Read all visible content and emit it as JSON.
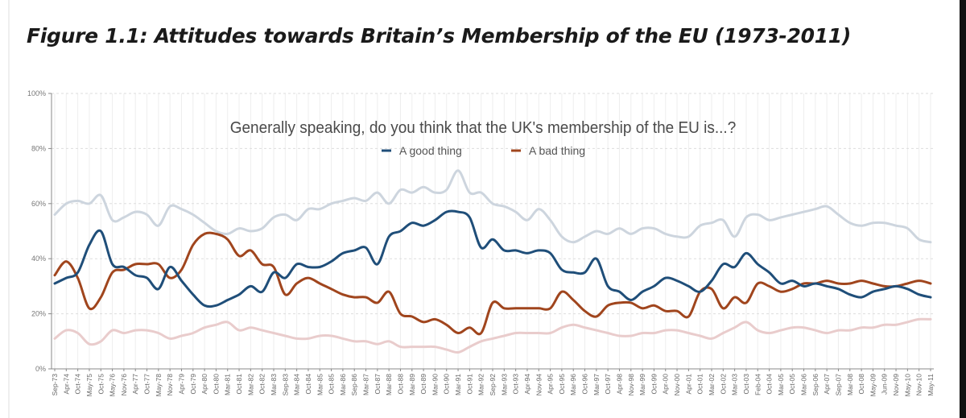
{
  "figure": {
    "title": "Figure 1.1: Attitudes towards Britain’s Membership of the EU (1973-2011)"
  },
  "chart_data": {
    "type": "line",
    "title": "Generally speaking, do you think that the UK's membership of the EU is...?",
    "xlabel": "",
    "ylabel": "",
    "ylim": [
      0,
      100
    ],
    "yticks": [
      "0%",
      "20%",
      "40%",
      "60%",
      "80%",
      "100%"
    ],
    "grid": true,
    "legend_position": "top-center",
    "colors": {
      "good": "#1f4e79",
      "bad": "#a0451d",
      "upper_band": "#cdd5de",
      "lower_band": "#e9cccc"
    },
    "categories": [
      "Sep-73",
      "Apr-74",
      "Oct-74",
      "May-75",
      "Oct-75",
      "May-76",
      "Nov-76",
      "Apr-77",
      "Oct-77",
      "May-78",
      "Nov-78",
      "Apr-79",
      "Oct-79",
      "Apr-80",
      "Oct-80",
      "Mar-81",
      "Oct-81",
      "Mar-82",
      "Oct-82",
      "Mar-83",
      "Sep-83",
      "Mar-84",
      "Oct-84",
      "Mar-85",
      "Oct-85",
      "Mar-86",
      "Sep-86",
      "Mar-87",
      "Oct-87",
      "Mar-88",
      "Oct-88",
      "Mar-89",
      "Oct-89",
      "Mar-90",
      "Oct-90",
      "Mar-91",
      "Oct-91",
      "Mar-92",
      "Sep-92",
      "Mar-93",
      "Oct-93",
      "Apr-94",
      "Nov-94",
      "Apr-95",
      "Oct-95",
      "Mar-96",
      "Oct-96",
      "Mar-97",
      "Oct-97",
      "Apr-98",
      "Nov-98",
      "Mar-99",
      "Oct-99",
      "Apr-00",
      "Nov-00",
      "Apr-01",
      "Oct-01",
      "Mar-02",
      "Oct-02",
      "Mar-03",
      "Oct-03",
      "Feb-04",
      "Oct-04",
      "Mar-05",
      "Oct-05",
      "Mar-06",
      "Sep-06",
      "Apr-07",
      "Sep-07",
      "Mar-08",
      "Oct-08",
      "May-09",
      "Jun-09",
      "Nov-09",
      "May-10",
      "Nov-10",
      "May-11"
    ],
    "series": [
      {
        "name": "A good thing",
        "color": "#1f4e79",
        "values": [
          31,
          33,
          35,
          45,
          50,
          38,
          37,
          34,
          33,
          29,
          37,
          32,
          27,
          23,
          23,
          25,
          27,
          30,
          28,
          35,
          33,
          38,
          37,
          37,
          39,
          42,
          43,
          44,
          38,
          48,
          50,
          53,
          52,
          54,
          57,
          57,
          55,
          44,
          47,
          43,
          43,
          42,
          43,
          42,
          36,
          35,
          35,
          40,
          30,
          28,
          25,
          28,
          30,
          33,
          32,
          30,
          28,
          32,
          38,
          37,
          42,
          38,
          35,
          31,
          32,
          30,
          31,
          30,
          29,
          27,
          26,
          28,
          29,
          30,
          29,
          27,
          26
        ]
      },
      {
        "name": "A bad thing",
        "color": "#a0451d",
        "values": [
          34,
          39,
          33,
          22,
          26,
          35,
          36,
          38,
          38,
          38,
          33,
          36,
          45,
          49,
          49,
          47,
          41,
          43,
          38,
          37,
          27,
          31,
          33,
          31,
          29,
          27,
          26,
          26,
          24,
          28,
          20,
          19,
          17,
          18,
          16,
          13,
          15,
          13,
          24,
          22,
          22,
          22,
          22,
          22,
          28,
          25,
          21,
          19,
          23,
          24,
          24,
          22,
          23,
          21,
          21,
          19,
          28,
          29,
          22,
          26,
          24,
          31,
          30,
          28,
          29,
          31,
          31,
          32,
          31,
          31,
          32,
          31,
          30,
          30,
          31,
          32,
          31
        ]
      },
      {
        "values": [
          56,
          60,
          61,
          60,
          63,
          54,
          55,
          57,
          56,
          52,
          59,
          58,
          56,
          53,
          50,
          49,
          51,
          50,
          51,
          55,
          56,
          54,
          58,
          58,
          60,
          61,
          62,
          61,
          64,
          60,
          65,
          64,
          66,
          64,
          65,
          72,
          64,
          64,
          60,
          59,
          57,
          54,
          58,
          54,
          48,
          46,
          48,
          50,
          49,
          51,
          49,
          51,
          51,
          49,
          48,
          48,
          52,
          53,
          54,
          48,
          55,
          56,
          54,
          55,
          56,
          57,
          58,
          59,
          56,
          53,
          52,
          53,
          53,
          52,
          51,
          47,
          46
        ]
      },
      {
        "values": [
          11,
          14,
          13,
          9,
          10,
          14,
          13,
          14,
          14,
          13,
          11,
          12,
          13,
          15,
          16,
          17,
          14,
          15,
          14,
          13,
          12,
          11,
          11,
          12,
          12,
          11,
          10,
          10,
          9,
          10,
          8,
          8,
          8,
          8,
          7,
          6,
          8,
          10,
          11,
          12,
          13,
          13,
          13,
          13,
          15,
          16,
          15,
          14,
          13,
          12,
          12,
          13,
          13,
          14,
          14,
          13,
          12,
          11,
          13,
          15,
          17,
          14,
          13,
          14,
          15,
          15,
          14,
          13,
          14,
          14,
          15,
          15,
          16,
          16,
          17,
          18,
          18
        ]
      }
    ]
  }
}
